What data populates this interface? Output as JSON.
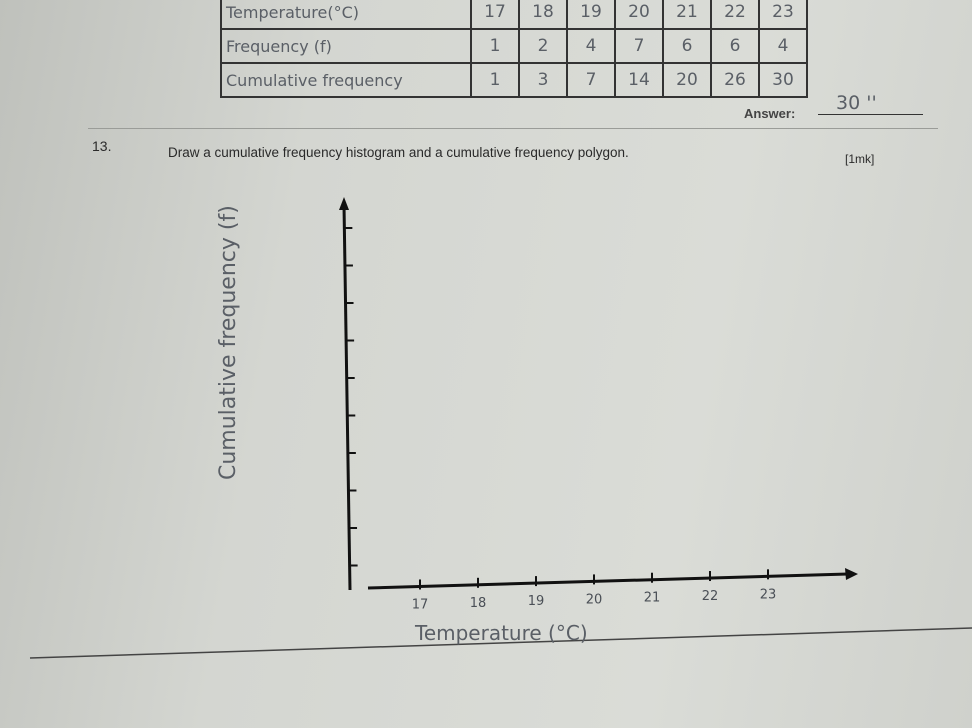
{
  "table": {
    "rows": [
      {
        "label": "Temperature(°C)",
        "cells": [
          "17",
          "18",
          "19",
          "20",
          "21",
          "22",
          "23"
        ]
      },
      {
        "label": "Frequency (f)",
        "cells": [
          "1",
          "2",
          "4",
          "7",
          "6",
          "6",
          "4"
        ]
      },
      {
        "label": "Cumulative frequency",
        "cells": [
          "1",
          "3",
          "7",
          "14",
          "20",
          "26",
          "30"
        ]
      }
    ]
  },
  "answer": {
    "label": "Answer:",
    "value": "30 ''"
  },
  "question": {
    "number": "13.",
    "text": "Draw a cumulative frequency histogram and a cumulative frequency polygon.",
    "marks": "[1mk]"
  },
  "graph": {
    "y_label": "Cumulative frequency (f)",
    "x_label": "Temperature (°C)",
    "x_ticks": [
      "17",
      "18",
      "19",
      "20",
      "21",
      "22",
      "23"
    ]
  }
}
